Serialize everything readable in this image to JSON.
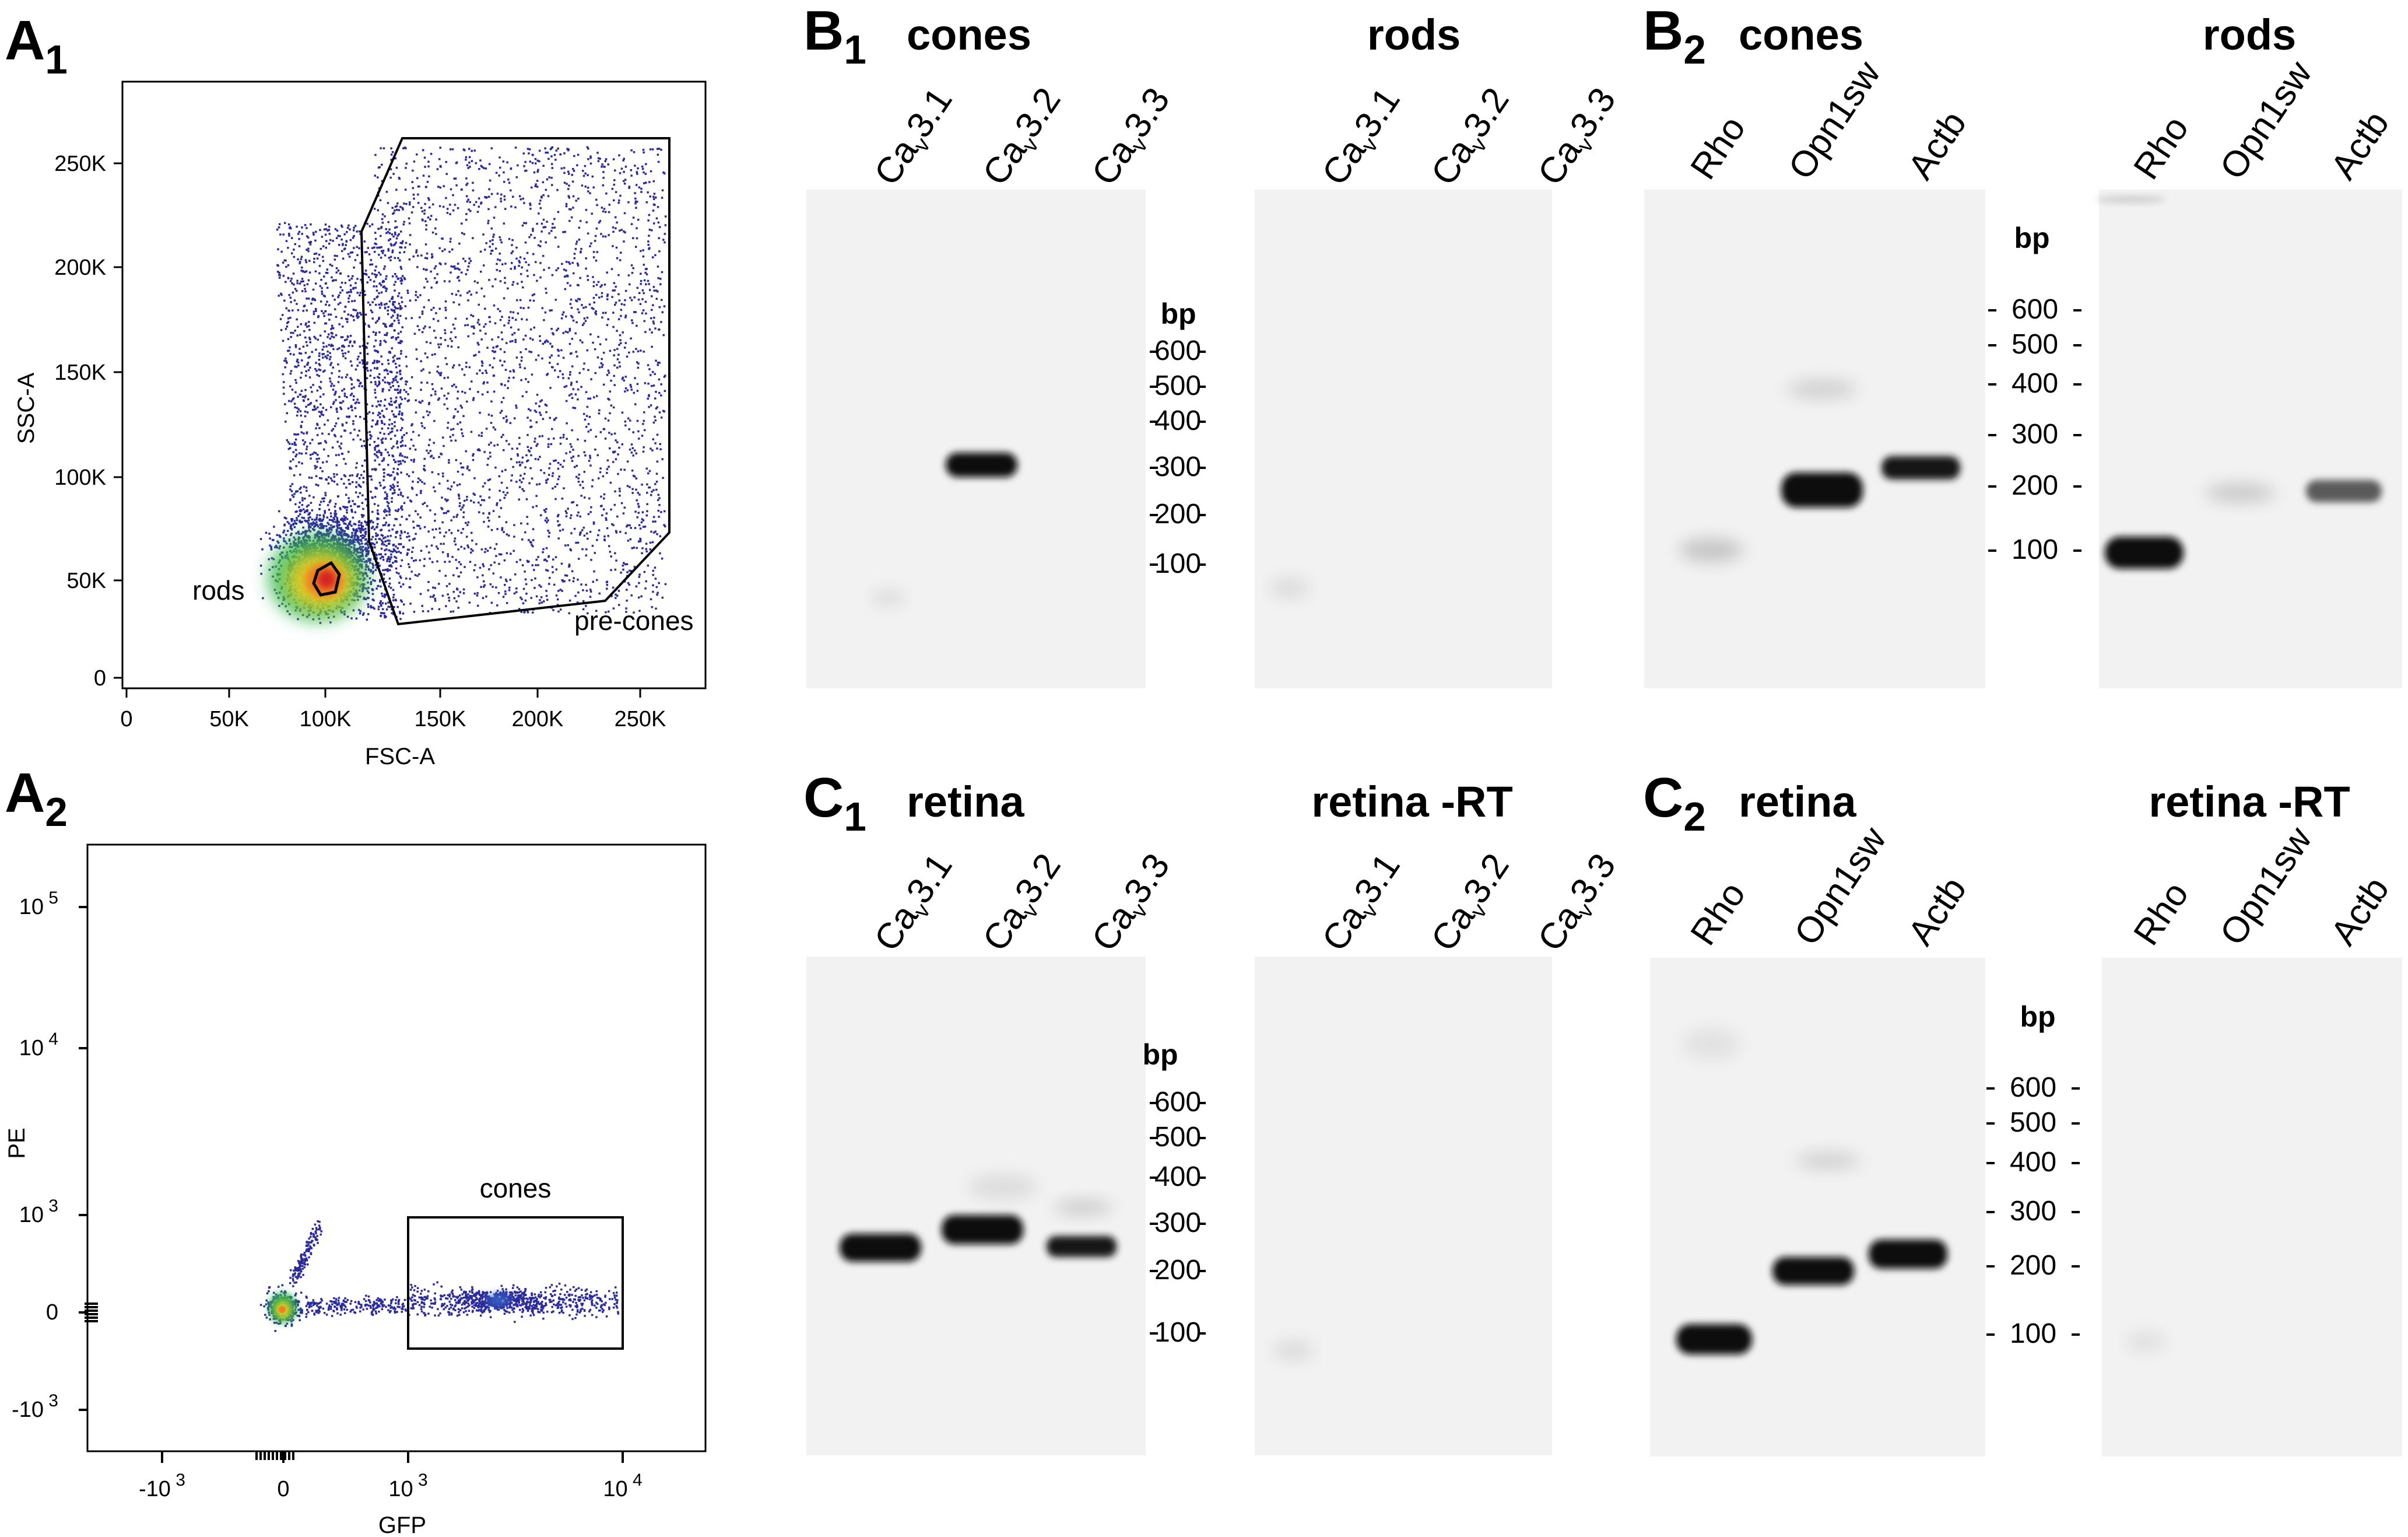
{
  "panels": {
    "a1": {
      "label": "A",
      "label_sub": "1",
      "xlabel": "FSC-A",
      "ylabel": "SSC-A",
      "xticks": [
        "0",
        "50K",
        "100K",
        "150K",
        "200K",
        "250K"
      ],
      "yticks": [
        "0",
        "50K",
        "100K",
        "150K",
        "200K",
        "250K"
      ],
      "gates": [
        "rods",
        "pre-cones"
      ]
    },
    "a2": {
      "label": "A",
      "label_sub": "2",
      "xlabel": "GFP",
      "ylabel": "PE",
      "xticks": [
        {
          "base": "-10",
          "exp": "3"
        },
        {
          "base": "0",
          "exp": ""
        },
        {
          "base": "10",
          "exp": "3"
        },
        {
          "base": "10",
          "exp": "4"
        }
      ],
      "yticks": [
        {
          "base": "10",
          "exp": "5"
        },
        {
          "base": "10",
          "exp": "4"
        },
        {
          "base": "10",
          "exp": "3"
        },
        {
          "base": "0",
          "exp": ""
        },
        {
          "base": "-10",
          "exp": "3"
        }
      ],
      "gates": [
        "cones"
      ]
    },
    "b1": {
      "label": "B",
      "label_sub": "1",
      "left_title": "cones",
      "right_title": "rods",
      "lanes": [
        {
          "pre": "Ca",
          "sub": "v",
          "post": "3.1"
        },
        {
          "pre": "Ca",
          "sub": "v",
          "post": "3.2"
        },
        {
          "pre": "Ca",
          "sub": "v",
          "post": "3.3"
        }
      ],
      "ladder_unit": "bp",
      "ladder": [
        "600",
        "500",
        "400",
        "300",
        "200",
        "100"
      ]
    },
    "b2": {
      "label": "B",
      "label_sub": "2",
      "left_title": "cones",
      "right_title": "rods",
      "lanes": [
        "Rho",
        "Opn1sw",
        "Actb"
      ],
      "ladder_unit": "bp",
      "ladder": [
        "600",
        "500",
        "400",
        "300",
        "200",
        "100"
      ]
    },
    "c1": {
      "label": "C",
      "label_sub": "1",
      "left_title": "retina",
      "right_title": "retina -RT",
      "lanes": [
        {
          "pre": "Ca",
          "sub": "v",
          "post": "3.1"
        },
        {
          "pre": "Ca",
          "sub": "v",
          "post": "3.2"
        },
        {
          "pre": "Ca",
          "sub": "v",
          "post": "3.3"
        }
      ],
      "ladder_unit": "bp",
      "ladder": [
        "600",
        "500",
        "400",
        "300",
        "200",
        "100"
      ]
    },
    "c2": {
      "label": "C",
      "label_sub": "2",
      "left_title": "retina",
      "right_title": "retina -RT",
      "lanes": [
        "Rho",
        "Opn1sw",
        "Actb"
      ],
      "ladder_unit": "bp",
      "ladder": [
        "600",
        "500",
        "400",
        "300",
        "200",
        "100"
      ]
    }
  },
  "colors": {
    "dot_blue": "#2a2a9a",
    "density_green": "#2db84a",
    "density_yellow": "#f0d020",
    "density_orange": "#f08020",
    "density_red": "#d42020",
    "gel_background": "#f2f2f2",
    "band": "#0d0d0d",
    "faint_band": "#c8c8c8",
    "gate_line": "#000000"
  }
}
